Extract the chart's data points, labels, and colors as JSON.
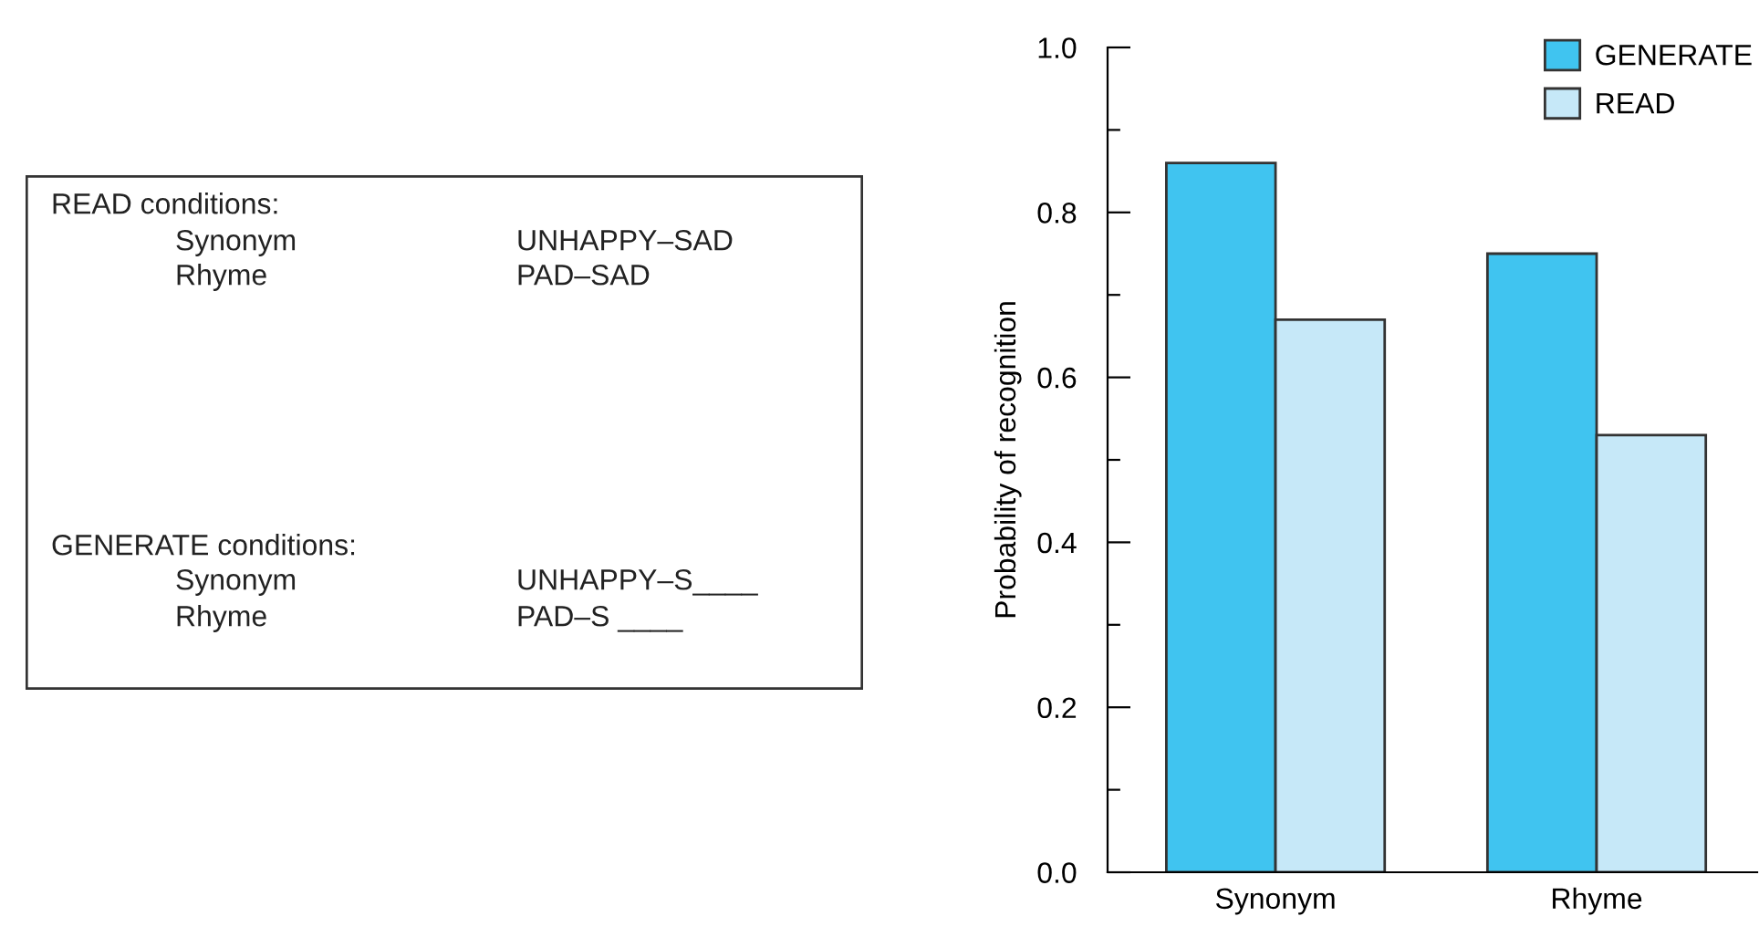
{
  "chart_data": [
    {
      "type": "other",
      "annotations": [
        "READ conditions:",
        "Synonym",
        "UNHAPPY–SAD",
        "Rhyme",
        "PAD–SAD",
        "GENERATE conditions:",
        "Synonym",
        "UNHAPPY–S____",
        "Rhyme",
        "PAD–S ____"
      ]
    },
    {
      "type": "bar",
      "ylabel": "Probability of recognition",
      "categories": [
        "Synonym",
        "Rhyme"
      ],
      "series": [
        {
          "name": "GENERATE",
          "color": "#40c4f0",
          "values": [
            0.86,
            0.75
          ]
        },
        {
          "name": "READ",
          "color": "#c6e8f8",
          "values": [
            0.67,
            0.53
          ]
        }
      ],
      "ylim": [
        0,
        1
      ],
      "yticks": [
        {
          "value": 0,
          "label": "0.0"
        },
        {
          "value": 0.1,
          "label": null
        },
        {
          "value": 0.2,
          "label": "0.2"
        },
        {
          "value": 0.3,
          "label": null
        },
        {
          "value": 0.4,
          "label": "0.4"
        },
        {
          "value": 0.5,
          "label": null
        },
        {
          "value": 0.6,
          "label": "0.6"
        },
        {
          "value": 0.7,
          "label": null
        },
        {
          "value": 0.8,
          "label": "0.8"
        },
        {
          "value": 0.9,
          "label": null
        },
        {
          "value": 1,
          "label": "1.0"
        }
      ],
      "grid": false,
      "legend": "top right"
    }
  ]
}
